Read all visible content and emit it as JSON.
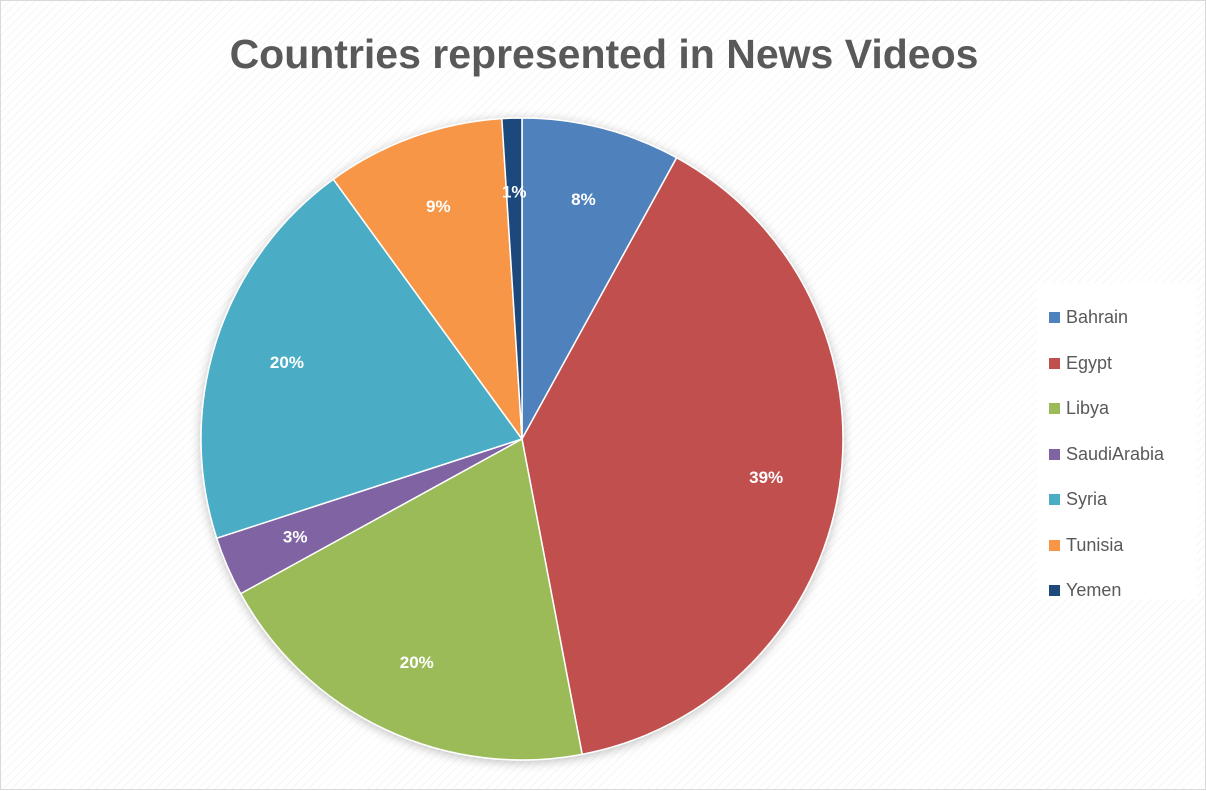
{
  "chart_data": {
    "type": "pie",
    "title": "Countries represented in News Videos",
    "categories": [
      "Bahrain",
      "Egypt",
      "Libya",
      "SaudiArabia",
      "Syria",
      "Tunisia",
      "Yemen"
    ],
    "values": [
      8,
      39,
      20,
      3,
      20,
      9,
      1
    ],
    "data_labels": [
      "8%",
      "39%",
      "20%",
      "3%",
      "20%",
      "9%",
      "1%"
    ],
    "colors": [
      "#4f81bd",
      "#c0504d",
      "#9bbb59",
      "#8064a2",
      "#4bacc6",
      "#f79646",
      "#1f497d"
    ],
    "legend_position": "right",
    "start_angle": "top, clockwise"
  }
}
